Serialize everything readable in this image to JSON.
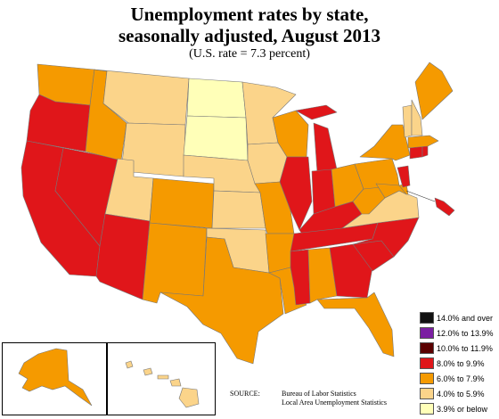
{
  "header": {
    "title_line1": "Unemployment rates by state,",
    "title_line2": "seasonally adjusted, August 2013",
    "subtitle": "(U.S. rate = 7.3 percent)"
  },
  "colors": {
    "c14plus": "#111111",
    "c12_13": "#7b1fa2",
    "c10_11": "#5a0000",
    "c8_9": "#e0161a",
    "c6_7": "#f59a00",
    "c4_5": "#fbd48a",
    "c3_below": "#ffffb8"
  },
  "legend": [
    {
      "label": "14.0% and over",
      "color": "#111111"
    },
    {
      "label": "12.0% to 13.9%",
      "color": "#7b1fa2"
    },
    {
      "label": "10.0% to 11.9%",
      "color": "#5a0000"
    },
    {
      "label": "8.0% to 9.9%",
      "color": "#e0161a"
    },
    {
      "label": "6.0% to 7.9%",
      "color": "#f59a00"
    },
    {
      "label": "4.0% to 5.9%",
      "color": "#fbd48a"
    },
    {
      "label": "3.9% or below",
      "color": "#ffffb8"
    }
  ],
  "source": {
    "label": "SOURCE:",
    "line1": "Bureau of Labor Statistics",
    "line2": "Local Area Unemployment Statistics"
  },
  "states": {
    "WA": "6.0-7.9",
    "OR": "8.0-9.9",
    "CA": "8.0-9.9",
    "NV": "8.0-9.9",
    "ID": "6.0-7.9",
    "MT": "4.0-5.9",
    "WY": "4.0-5.9",
    "UT": "4.0-5.9",
    "AZ": "8.0-9.9",
    "CO": "6.0-7.9",
    "NM": "6.0-7.9",
    "ND": "3.9 or below",
    "SD": "3.9 or below",
    "NE": "4.0-5.9",
    "KS": "4.0-5.9",
    "OK": "4.0-5.9",
    "TX": "6.0-7.9",
    "MN": "4.0-5.9",
    "IA": "4.0-5.9",
    "MO": "6.0-7.9",
    "AR": "6.0-7.9",
    "LA": "6.0-7.9",
    "WI": "6.0-7.9",
    "IL": "8.0-9.9",
    "MI": "8.0-9.9",
    "IN": "8.0-9.9",
    "OH": "6.0-7.9",
    "KY": "8.0-9.9",
    "TN": "8.0-9.9",
    "MS": "8.0-9.9",
    "AL": "6.0-7.9",
    "GA": "8.0-9.9",
    "FL": "6.0-7.9",
    "SC": "8.0-9.9",
    "NC": "8.0-9.9",
    "VA": "4.0-5.9",
    "WV": "6.0-7.9",
    "PA": "6.0-7.9",
    "NY": "6.0-7.9",
    "VT": "4.0-5.9",
    "NH": "4.0-5.9",
    "ME": "6.0-7.9",
    "MA": "6.0-7.9",
    "RI": "8.0-9.9",
    "CT": "8.0-9.9",
    "NJ": "8.0-9.9",
    "DE": "6.0-7.9",
    "MD": "6.0-7.9",
    "DC": "8.0-9.9",
    "AK": "6.0-7.9",
    "HI": "4.0-5.9"
  }
}
